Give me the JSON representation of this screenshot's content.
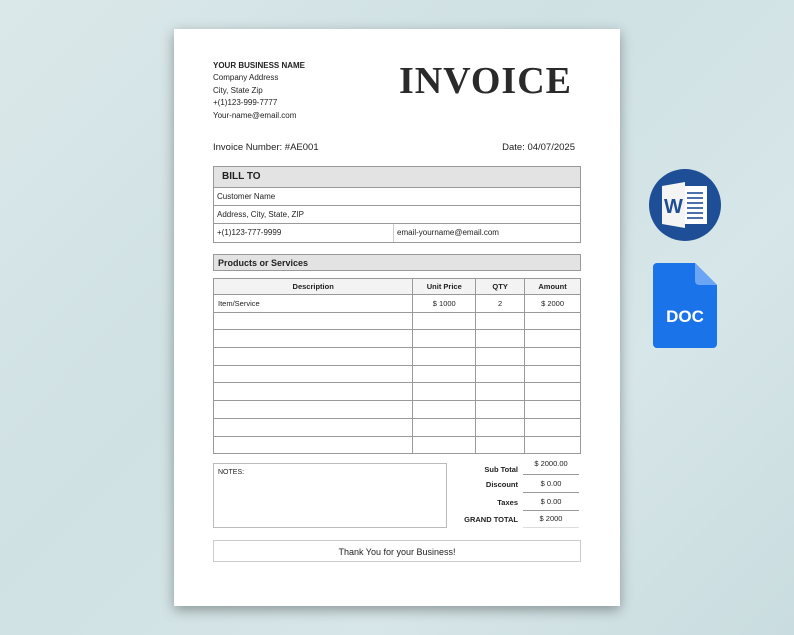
{
  "business": {
    "name": "YOUR BUSINESS NAME",
    "address": "Company Address",
    "city": "City, State Zip",
    "phone": "+(1)123-999-7777",
    "email": "Your-name@email.com"
  },
  "title": "INVOICE",
  "invoice_number": "Invoice Number: #AE001",
  "date": "Date: 04/07/2025",
  "bill_to": {
    "heading": "BILL TO",
    "customer": "Customer Name",
    "address": "Address, City, State, ZIP",
    "phone": "+(1)123-777-9999",
    "email": "email-yourname@email.com"
  },
  "products_heading": "Products or Services",
  "table": {
    "headers": [
      "Description",
      "Unit Price",
      "QTY",
      "Amount"
    ],
    "rows": [
      [
        "Item/Service",
        "$ 1000",
        "2",
        "$ 2000"
      ],
      [
        "",
        "",
        "",
        ""
      ],
      [
        "",
        "",
        "",
        ""
      ],
      [
        "",
        "",
        "",
        ""
      ],
      [
        "",
        "",
        "",
        ""
      ],
      [
        "",
        "",
        "",
        ""
      ],
      [
        "",
        "",
        "",
        ""
      ],
      [
        "",
        "",
        "",
        ""
      ],
      [
        "",
        "",
        "",
        ""
      ]
    ]
  },
  "notes_label": "NOTES:",
  "totals": [
    {
      "label": "Sub Total",
      "value": "$ 2000.00"
    },
    {
      "label": "Discount",
      "value": "$ 0.00"
    },
    {
      "label": "Taxes",
      "value": "$ 0.00"
    },
    {
      "label": "GRAND TOTAL",
      "value": "$ 2000"
    }
  ],
  "thanks": "Thank You for your Business!",
  "icons": {
    "word": "microsoft-word-icon",
    "word_letter": "W",
    "doc": "doc-file-icon",
    "doc_label": "DOC"
  },
  "colors": {
    "word_blue": "#1d4e96",
    "doc_blue": "#1a73e8"
  }
}
